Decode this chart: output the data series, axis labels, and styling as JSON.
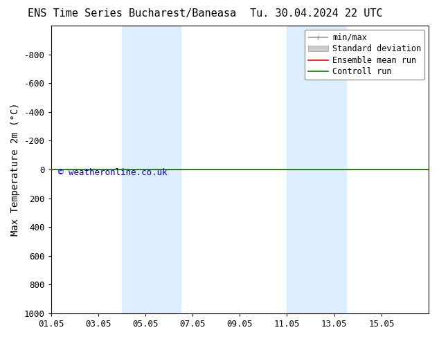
{
  "title_left": "ENS Time Series Bucharest/Baneasa",
  "title_right": "Tu. 30.04.2024 22 UTC",
  "ylabel": "Max Temperature 2m (°C)",
  "xlim_min": 0,
  "xlim_max": 16.0,
  "ymin": -1000,
  "ymax": 1000,
  "yticks": [
    -800,
    -600,
    -400,
    -200,
    0,
    200,
    400,
    600,
    800,
    1000
  ],
  "xtick_labels": [
    "01.05",
    "03.05",
    "05.05",
    "07.05",
    "09.05",
    "11.05",
    "13.05",
    "15.05"
  ],
  "xtick_positions": [
    0,
    2,
    4,
    6,
    8,
    10,
    12,
    14
  ],
  "shaded_bands": [
    {
      "x_start": 3.0,
      "x_end": 5.5
    },
    {
      "x_start": 10.0,
      "x_end": 12.5
    }
  ],
  "control_run_y": 0,
  "ensemble_mean_y": 0,
  "watermark": "© weatheronline.co.uk",
  "watermark_color": "#0000cc",
  "background_color": "#ffffff",
  "plot_bg_color": "#ffffff",
  "shaded_color": "#ddeeff",
  "control_run_color": "#008000",
  "ensemble_mean_color": "#ff0000",
  "minmax_color": "#999999",
  "stddev_color": "#cccccc",
  "font_size_title": 11,
  "font_size_ticks": 9,
  "font_size_ylabel": 10,
  "font_size_legend": 8.5,
  "font_size_watermark": 9,
  "legend_labels": [
    "min/max",
    "Standard deviation",
    "Ensemble mean run",
    "Controll run"
  ]
}
